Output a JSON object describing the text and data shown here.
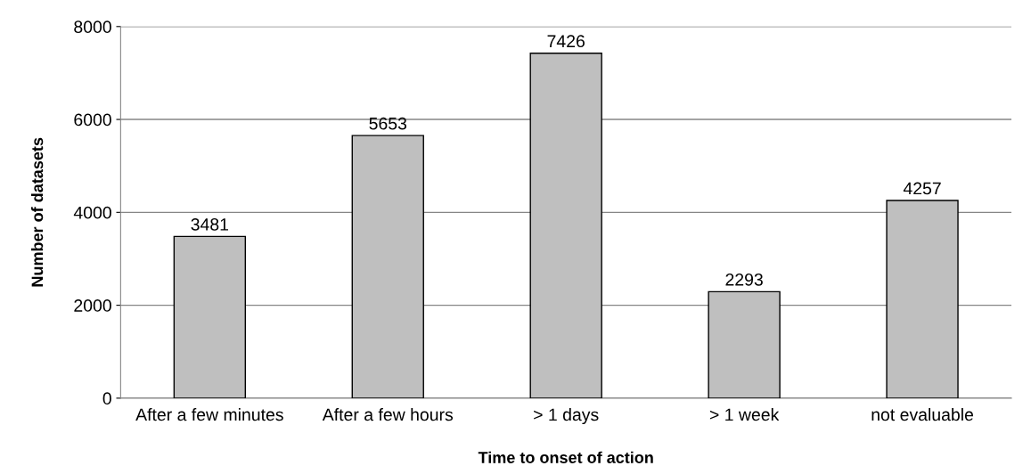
{
  "chart_data": {
    "type": "bar",
    "categories": [
      "After a few minutes",
      "After a few hours",
      "> 1 days",
      "> 1 week",
      "not evaluable"
    ],
    "values": [
      3481,
      5653,
      7426,
      2293,
      4257
    ],
    "color": "#bfbfbf",
    "xlabel": "Time to onset of action",
    "ylabel": "Number of datasets",
    "ylim": [
      0,
      8000
    ],
    "yticks": [
      0,
      2000,
      4000,
      6000,
      8000
    ],
    "grid": "y",
    "data_labels": true
  }
}
